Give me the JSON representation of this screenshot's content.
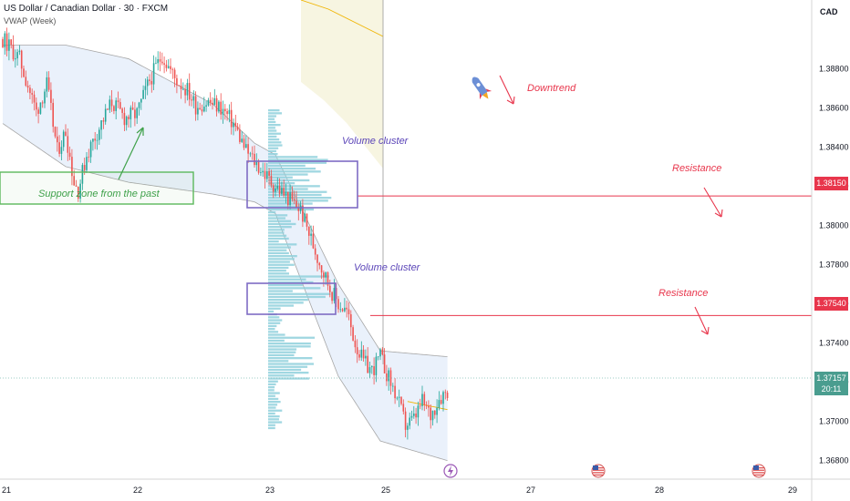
{
  "header": {
    "title": "US Dollar / Canadian Dollar · 30 · FXCM",
    "indicator": "VWAP (Week)"
  },
  "currency_label": "CAD",
  "colors": {
    "bull": "#26a69a",
    "bear": "#ef5350",
    "volume_profile": "#8fd0dc",
    "vwap_band_fill": "#e8f0fb",
    "vwap_band_line": "#a6a6a6",
    "vwap_line": "#f0b400",
    "resistance_line": "#e8364c",
    "cluster_box": "#7e6cc4",
    "support_box": "#5cb85c",
    "current_price_bg": "#4a9d8f"
  },
  "chart_data": {
    "type": "candlestick",
    "symbol": "USDCAD",
    "timeframe": "30",
    "ylim": [
      1.3671,
      1.3915
    ],
    "y_ticks": [
      1.388,
      1.386,
      1.384,
      1.382,
      1.38,
      1.378,
      1.376,
      1.374,
      1.372,
      1.37,
      1.368
    ],
    "y_tick_labels": [
      "1.38800",
      "1.38600",
      "1.38400",
      "1.38200",
      "1.38000",
      "1.37800",
      "1.37600",
      "1.37400",
      "1.37200",
      "1.37000",
      "1.36800"
    ],
    "x_labels": [
      "21",
      "22",
      "23",
      "25",
      "27",
      "28",
      "29"
    ],
    "close_path": [
      [
        0,
        1.3895
      ],
      [
        8,
        1.3885
      ],
      [
        16,
        1.3858
      ],
      [
        21,
        1.3872
      ],
      [
        26,
        1.3838
      ],
      [
        30,
        1.3848
      ],
      [
        34,
        1.3822
      ],
      [
        36,
        1.3818
      ],
      [
        40,
        1.3836
      ],
      [
        46,
        1.385
      ],
      [
        52,
        1.3863
      ],
      [
        58,
        1.3855
      ],
      [
        64,
        1.3857
      ],
      [
        70,
        1.3874
      ],
      [
        76,
        1.3887
      ],
      [
        82,
        1.3875
      ],
      [
        88,
        1.3869
      ],
      [
        92,
        1.3861
      ],
      [
        98,
        1.3863
      ],
      [
        104,
        1.386
      ],
      [
        110,
        1.3852
      ],
      [
        116,
        1.3838
      ],
      [
        122,
        1.383
      ],
      [
        128,
        1.3822
      ],
      [
        136,
        1.3814
      ],
      [
        142,
        1.3808
      ],
      [
        146,
        1.3796
      ],
      [
        150,
        1.3784
      ],
      [
        156,
        1.3768
      ],
      [
        160,
        1.376
      ],
      [
        164,
        1.3756
      ],
      [
        168,
        1.374
      ],
      [
        172,
        1.373
      ],
      [
        176,
        1.3726
      ],
      [
        180,
        1.3733
      ],
      [
        184,
        1.3722
      ],
      [
        188,
        1.3712
      ],
      [
        192,
        1.3698
      ],
      [
        196,
        1.3701
      ],
      [
        200,
        1.371
      ],
      [
        204,
        1.3703
      ],
      [
        208,
        1.3712
      ],
      [
        212,
        1.3716
      ]
    ],
    "vwap": {
      "upper": [
        [
          0,
          1.3892
        ],
        [
          30,
          1.3892
        ],
        [
          60,
          1.3885
        ],
        [
          100,
          1.3862
        ],
        [
          120,
          1.3842
        ],
        [
          130,
          1.3836
        ],
        [
          160,
          1.377
        ],
        [
          180,
          1.3736
        ],
        [
          212,
          1.3733
        ]
      ],
      "lower": [
        [
          0,
          1.3852
        ],
        [
          30,
          1.383
        ],
        [
          60,
          1.3822
        ],
        [
          100,
          1.3816
        ],
        [
          120,
          1.3812
        ],
        [
          130,
          1.3806
        ],
        [
          160,
          1.3723
        ],
        [
          180,
          1.369
        ],
        [
          212,
          1.368
        ]
      ],
      "mid": [
        [
          0,
          1.3872
        ],
        [
          30,
          1.386
        ],
        [
          60,
          1.3852
        ],
        [
          100,
          1.3839
        ],
        [
          120,
          1.3827
        ],
        [
          130,
          1.3821
        ],
        [
          160,
          1.3746
        ],
        [
          180,
          1.3713
        ],
        [
          212,
          1.3706
        ]
      ]
    },
    "resistance_levels": [
      1.3815,
      1.3754
    ],
    "current_price": "1.37157",
    "countdown": "20:11"
  },
  "annotations": {
    "downtrend": "Downtrend",
    "resistance_1": "Resistance",
    "resistance_2": "Resistance",
    "volume_cluster_1": "Volume cluster",
    "volume_cluster_2": "Volume cluster",
    "support_zone": "Support zone from the past"
  },
  "price_tags": {
    "r1": "1.38150",
    "r2": "1.37540"
  },
  "event_icons": [
    "lightning-icon",
    "us-flag-icon",
    "us-flag-icon"
  ]
}
